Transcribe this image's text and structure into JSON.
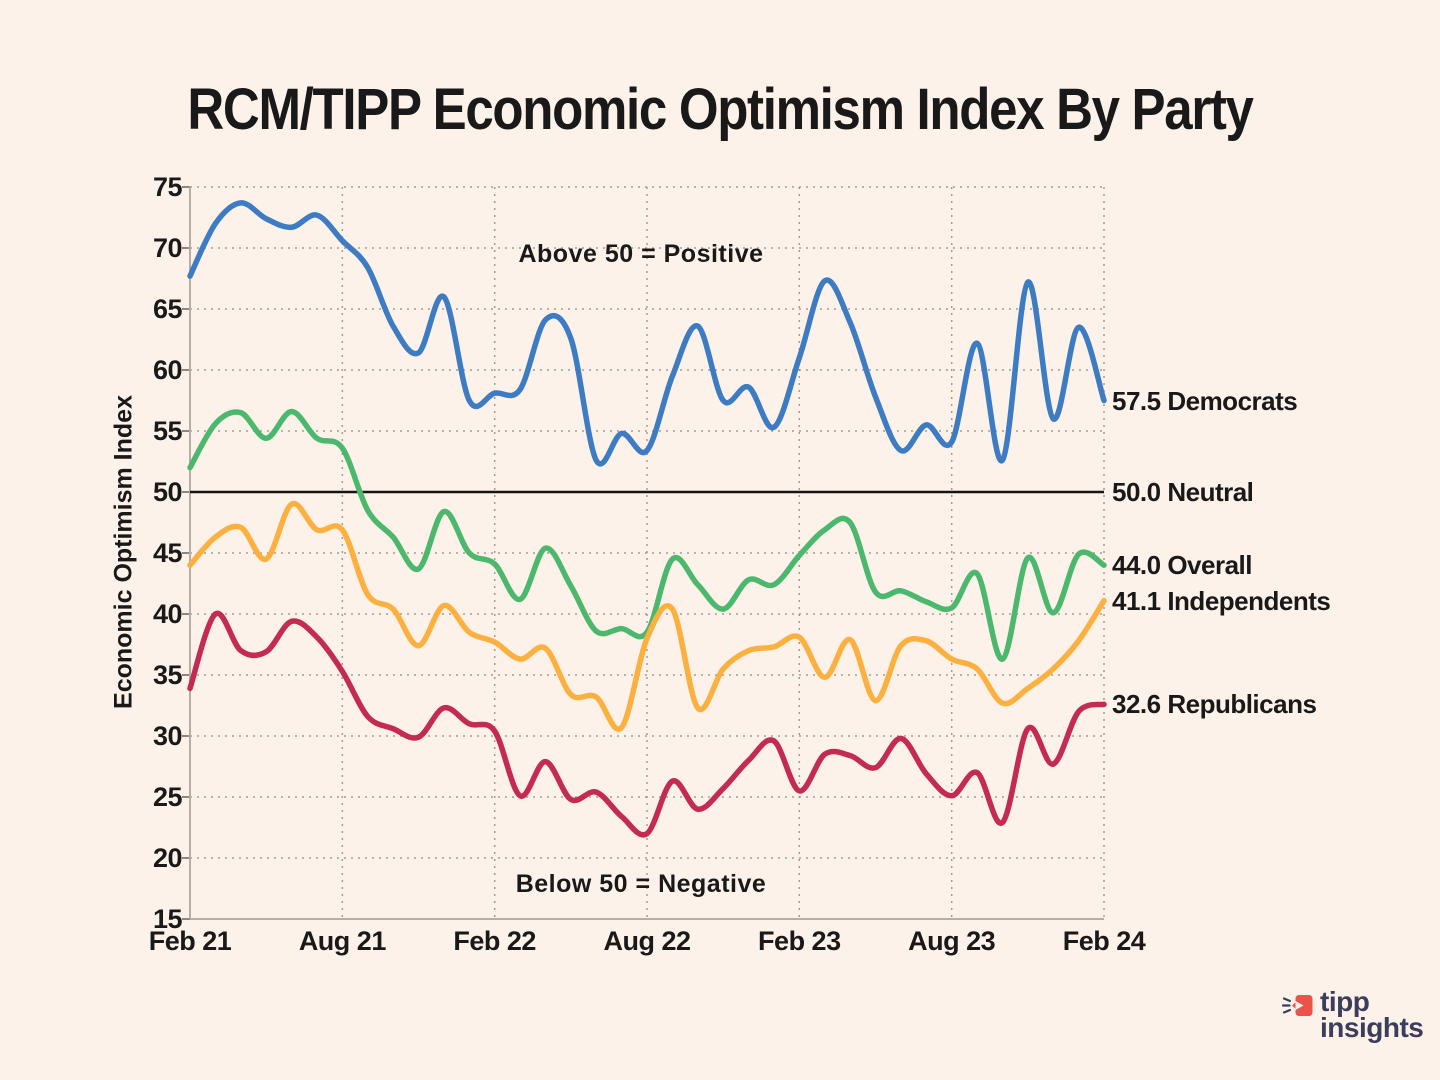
{
  "title": "RCM/TIPP Economic Optimism Index By Party",
  "y_axis_label": "Economic Optimism Index",
  "annotations": {
    "above": "Above 50 = Positive",
    "below": "Below 50 = Negative"
  },
  "logo": {
    "line1": "tipp",
    "line2": "insights",
    "text_color": "#3a3d5b",
    "icon_color": "#ea5349"
  },
  "colors": {
    "background": "#fdf2e9",
    "text": "#191919",
    "grid": "#8d867e",
    "axis": "#b5aea6",
    "neutral_line": "#141414"
  },
  "chart_data": {
    "type": "line",
    "x": [
      "Feb 21",
      "Mar 21",
      "Apr 21",
      "May 21",
      "Jun 21",
      "Jul 21",
      "Aug 21",
      "Sep 21",
      "Oct 21",
      "Nov 21",
      "Dec 21",
      "Jan 22",
      "Feb 22",
      "Mar 22",
      "Apr 22",
      "May 22",
      "Jun 22",
      "Jul 22",
      "Aug 22",
      "Sep 22",
      "Oct 22",
      "Nov 22",
      "Dec 22",
      "Jan 23",
      "Feb 23",
      "Mar 23",
      "Apr 23",
      "May 23",
      "Jun 23",
      "Jul 23",
      "Aug 23",
      "Sep 23",
      "Oct 23",
      "Nov 23",
      "Dec 23",
      "Jan 24",
      "Feb 24"
    ],
    "x_tick_labels": [
      "Feb 21",
      "Aug 21",
      "Feb 22",
      "Aug 22",
      "Feb 23",
      "Aug 23",
      "Feb 24"
    ],
    "x_tick_positions": [
      0,
      6,
      12,
      18,
      24,
      30,
      36
    ],
    "y_ticks": [
      15,
      20,
      25,
      30,
      35,
      40,
      45,
      50,
      55,
      60,
      65,
      70,
      75
    ],
    "ylim": [
      15,
      75
    ],
    "grid": true,
    "legend_position": "right-end-labels",
    "reference_line": {
      "value": 50.0,
      "label": "50.0 Neutral"
    },
    "series": [
      {
        "name": "Democrats",
        "color": "#3d7cc2",
        "end_value": 57.5,
        "end_label": "57.5 Democrats",
        "values": [
          67.7,
          72.0,
          73.7,
          72.4,
          71.7,
          72.7,
          70.6,
          68.4,
          63.6,
          61.4,
          66.0,
          57.5,
          58.1,
          58.4,
          64.1,
          62.6,
          52.6,
          54.8,
          53.4,
          59.5,
          63.6,
          57.5,
          58.6,
          55.3,
          61.0,
          67.3,
          63.9,
          57.8,
          53.4,
          55.5,
          54.1,
          62.2,
          52.6,
          67.2,
          56.0,
          63.5,
          57.5
        ]
      },
      {
        "name": "Overall",
        "color": "#4bb86e",
        "end_value": 44.0,
        "end_label": "44.0 Overall",
        "values": [
          52.0,
          55.6,
          56.5,
          54.4,
          56.6,
          54.4,
          53.6,
          48.5,
          46.3,
          43.7,
          48.4,
          45.0,
          44.1,
          41.2,
          45.4,
          42.3,
          38.6,
          38.8,
          38.5,
          44.5,
          42.4,
          40.4,
          42.8,
          42.4,
          44.8,
          46.9,
          47.5,
          41.8,
          41.9,
          41.0,
          40.5,
          43.3,
          36.3,
          44.6,
          40.1,
          44.9,
          44.0
        ]
      },
      {
        "name": "Independents",
        "color": "#fbb040",
        "end_value": 41.1,
        "end_label": "41.1 Independents",
        "values": [
          44.0,
          46.3,
          47.1,
          44.5,
          49.0,
          46.9,
          46.9,
          41.6,
          40.4,
          37.4,
          40.7,
          38.5,
          37.7,
          36.3,
          37.2,
          33.4,
          33.2,
          30.7,
          38.0,
          40.4,
          32.3,
          35.5,
          37.0,
          37.3,
          38.1,
          34.8,
          37.9,
          32.9,
          37.4,
          37.8,
          36.3,
          35.5,
          32.7,
          33.9,
          35.5,
          37.8,
          41.1
        ]
      },
      {
        "name": "Republicans",
        "color": "#c32a54",
        "end_value": 32.6,
        "end_label": "32.6 Republicans",
        "values": [
          33.9,
          40.0,
          37.0,
          36.9,
          39.4,
          38.1,
          35.3,
          31.6,
          30.6,
          29.9,
          32.3,
          31.0,
          30.4,
          25.1,
          27.9,
          24.8,
          25.4,
          23.4,
          22.0,
          26.3,
          24.0,
          25.7,
          28.0,
          29.6,
          25.5,
          28.5,
          28.4,
          27.4,
          29.8,
          26.9,
          25.1,
          27.0,
          22.9,
          30.6,
          27.7,
          32.0,
          32.6
        ]
      }
    ]
  }
}
